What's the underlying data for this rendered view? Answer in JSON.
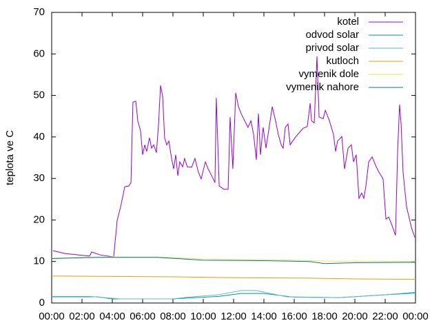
{
  "chart_data": {
    "type": "line",
    "y_label": "teplota ve C",
    "xlim": [
      0,
      24
    ],
    "ylim": [
      0,
      70
    ],
    "yticks": [
      0,
      10,
      20,
      30,
      40,
      50,
      60,
      70
    ],
    "xticks": [
      {
        "value": 0,
        "label": "00:00"
      },
      {
        "value": 2,
        "label": "02:00"
      },
      {
        "value": 4,
        "label": "04:00"
      },
      {
        "value": 6,
        "label": "06:00"
      },
      {
        "value": 8,
        "label": "08:00"
      },
      {
        "value": 10,
        "label": "10:00"
      },
      {
        "value": 12,
        "label": "12:00"
      },
      {
        "value": 14,
        "label": "14:00"
      },
      {
        "value": 16,
        "label": "16:00"
      },
      {
        "value": 18,
        "label": "18:00"
      },
      {
        "value": 20,
        "label": "20:00"
      },
      {
        "value": 22,
        "label": "22:00"
      },
      {
        "value": 24,
        "label": "00:00"
      }
    ],
    "legend": "top-right",
    "series": [
      {
        "name": "kotel",
        "color": "#9400d3",
        "x": [
          0.09,
          0.91,
          2.5,
          2.64,
          3.18,
          4.09,
          4.32,
          4.55,
          4.82,
          5.09,
          5.23,
          5.36,
          5.55,
          5.68,
          5.86,
          6.0,
          6.14,
          6.27,
          6.45,
          6.59,
          6.73,
          6.91,
          7.05,
          7.18,
          7.32,
          7.45,
          7.59,
          7.73,
          7.91,
          8.05,
          8.18,
          8.32,
          8.45,
          8.64,
          8.77,
          8.95,
          9.23,
          9.45,
          9.68,
          9.86,
          10.14,
          10.32,
          10.55,
          10.77,
          10.86,
          11.05,
          11.36,
          11.64,
          11.77,
          11.95,
          12.14,
          12.32,
          12.5,
          12.73,
          12.95,
          13.14,
          13.32,
          13.5,
          13.64,
          13.77,
          13.95,
          14.14,
          14.41,
          14.55,
          14.77,
          14.95,
          15.14,
          15.27,
          15.41,
          15.59,
          15.73,
          16.05,
          16.23,
          16.59,
          16.86,
          17.05,
          17.14,
          17.32,
          17.5,
          17.64,
          17.91,
          18.05,
          18.32,
          18.59,
          18.73,
          18.86,
          19.14,
          19.32,
          19.55,
          19.77,
          19.91,
          20.09,
          20.27,
          20.45,
          20.59,
          20.73,
          20.91,
          21.14,
          21.36,
          21.59,
          21.86,
          22.05,
          22.23,
          22.41,
          22.68,
          22.82,
          22.95,
          23.05,
          23.18,
          23.41,
          23.73,
          23.95
        ],
        "values": [
          12.6,
          11.9,
          11.3,
          12.3,
          11.6,
          11.1,
          19.9,
          23.2,
          28.0,
          28.2,
          29.0,
          48.4,
          48.6,
          43.9,
          41.5,
          35.7,
          38.1,
          36.5,
          39.8,
          37.3,
          38.1,
          36.2,
          43.1,
          52.4,
          49.8,
          39.8,
          38.1,
          39.0,
          34.8,
          32.3,
          35.7,
          30.7,
          34.0,
          32.8,
          34.8,
          32.8,
          32.7,
          34.8,
          31.5,
          29.9,
          34.0,
          32.3,
          30.7,
          29.0,
          49.4,
          28.2,
          27.4,
          27.4,
          44.8,
          32.3,
          50.6,
          47.3,
          45.6,
          43.9,
          42.3,
          43.9,
          40.6,
          34.5,
          45.6,
          35.7,
          42.3,
          37.3,
          43.9,
          47.3,
          43.9,
          40.6,
          38.1,
          37.3,
          42.3,
          43.1,
          38.1,
          39.8,
          40.6,
          42.1,
          42.5,
          48.1,
          43.9,
          43.4,
          59.4,
          44.8,
          44.4,
          46.4,
          43.9,
          40.6,
          36.5,
          39.0,
          40.1,
          32.3,
          37.3,
          38.1,
          34.0,
          35.7,
          25.2,
          26.5,
          25.2,
          28.2,
          34.0,
          35.2,
          33.2,
          31.5,
          29.9,
          20.2,
          20.7,
          19.1,
          16.3,
          36.5,
          47.8,
          43.1,
          31.5,
          23.2,
          18.2,
          15.8
        ]
      },
      {
        "name": "odvod solar",
        "color": "#009e73",
        "x": [
          0,
          3,
          4,
          8,
          9,
          11,
          12.5,
          14,
          16,
          19,
          22,
          24
        ],
        "values": [
          1.5,
          1.5,
          1.0,
          1.0,
          1.2,
          1.6,
          2.3,
          2.3,
          1.4,
          1.3,
          2.0,
          2.4
        ]
      },
      {
        "name": "privod solar",
        "color": "#56b4e9",
        "x": [
          0,
          2.5,
          4.5,
          8,
          9,
          11,
          12.5,
          13.5,
          15.5,
          19,
          22,
          24
        ],
        "values": [
          1.6,
          1.6,
          1.0,
          1.0,
          1.4,
          2.0,
          3.0,
          3.0,
          1.5,
          1.3,
          2.0,
          2.6
        ]
      },
      {
        "name": "kutloch",
        "color": "#e69f00",
        "x": [
          0,
          4,
          8,
          12,
          17,
          20,
          24
        ],
        "values": [
          6.5,
          6.4,
          6.3,
          6.1,
          6.0,
          5.8,
          5.7
        ]
      },
      {
        "name": "vymenik dole",
        "color": "#f0e442",
        "x": [
          0,
          3,
          7,
          10,
          15,
          18,
          24
        ],
        "values": [
          10.8,
          11.1,
          11.1,
          10.6,
          10.4,
          10.1,
          10.0
        ]
      },
      {
        "name": "vymenik nahore",
        "color": "#0072b2",
        "x": [
          0,
          3,
          7,
          10,
          14,
          17,
          18,
          20,
          24
        ],
        "values": [
          10.7,
          11.0,
          11.0,
          10.3,
          10.2,
          10.0,
          9.5,
          9.7,
          9.8
        ]
      }
    ]
  }
}
